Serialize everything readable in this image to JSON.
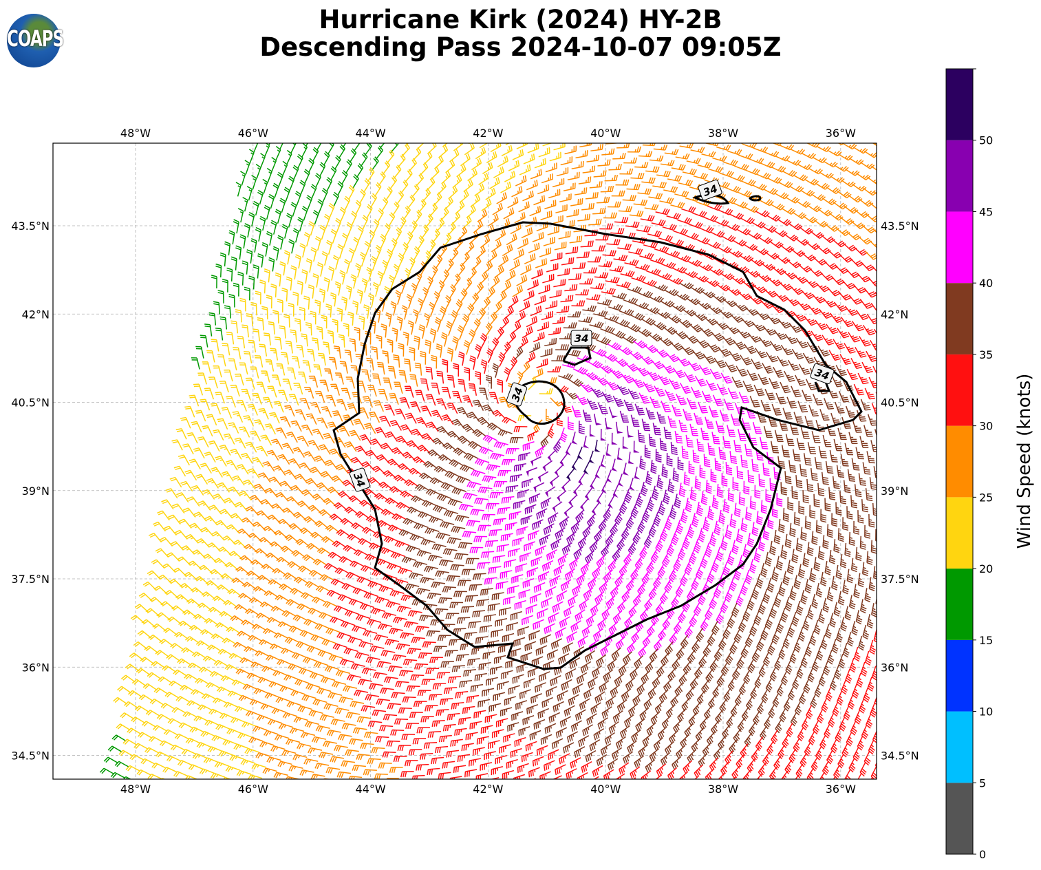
{
  "title": {
    "line1": "Hurricane Kirk (2024) HY-2B",
    "line2": "Descending Pass 2024-10-07 09:05Z"
  },
  "logo": {
    "text": "COAPS"
  },
  "map": {
    "lon_ticks": [
      "48°W",
      "46°W",
      "44°W",
      "42°W",
      "40°W",
      "38°W",
      "36°W"
    ],
    "lon_values": [
      -48,
      -46,
      -44,
      -42,
      -40,
      -38,
      -36
    ],
    "lat_ticks": [
      "43.5°N",
      "42°N",
      "40.5°N",
      "39°N",
      "37.5°N",
      "36°N",
      "34.5°N"
    ],
    "lat_values": [
      43.5,
      42,
      40.5,
      39,
      37.5,
      36,
      34.5
    ],
    "contour_label": "34",
    "contour_level_knots": 34
  },
  "colorbar": {
    "label": "Wind Speed (knots)",
    "ticks": [
      "0",
      "5",
      "10",
      "15",
      "20",
      "25",
      "30",
      "35",
      "40",
      "45",
      "50"
    ],
    "bounds": [
      0,
      5,
      10,
      15,
      20,
      25,
      30,
      35,
      40,
      45,
      50,
      55
    ],
    "colors": [
      "#555555",
      "#00bfff",
      "#0033ff",
      "#009900",
      "#ffd510",
      "#ff8c00",
      "#ff1010",
      "#803a20",
      "#ff00ff",
      "#8800b0",
      "#2c0060"
    ]
  }
}
